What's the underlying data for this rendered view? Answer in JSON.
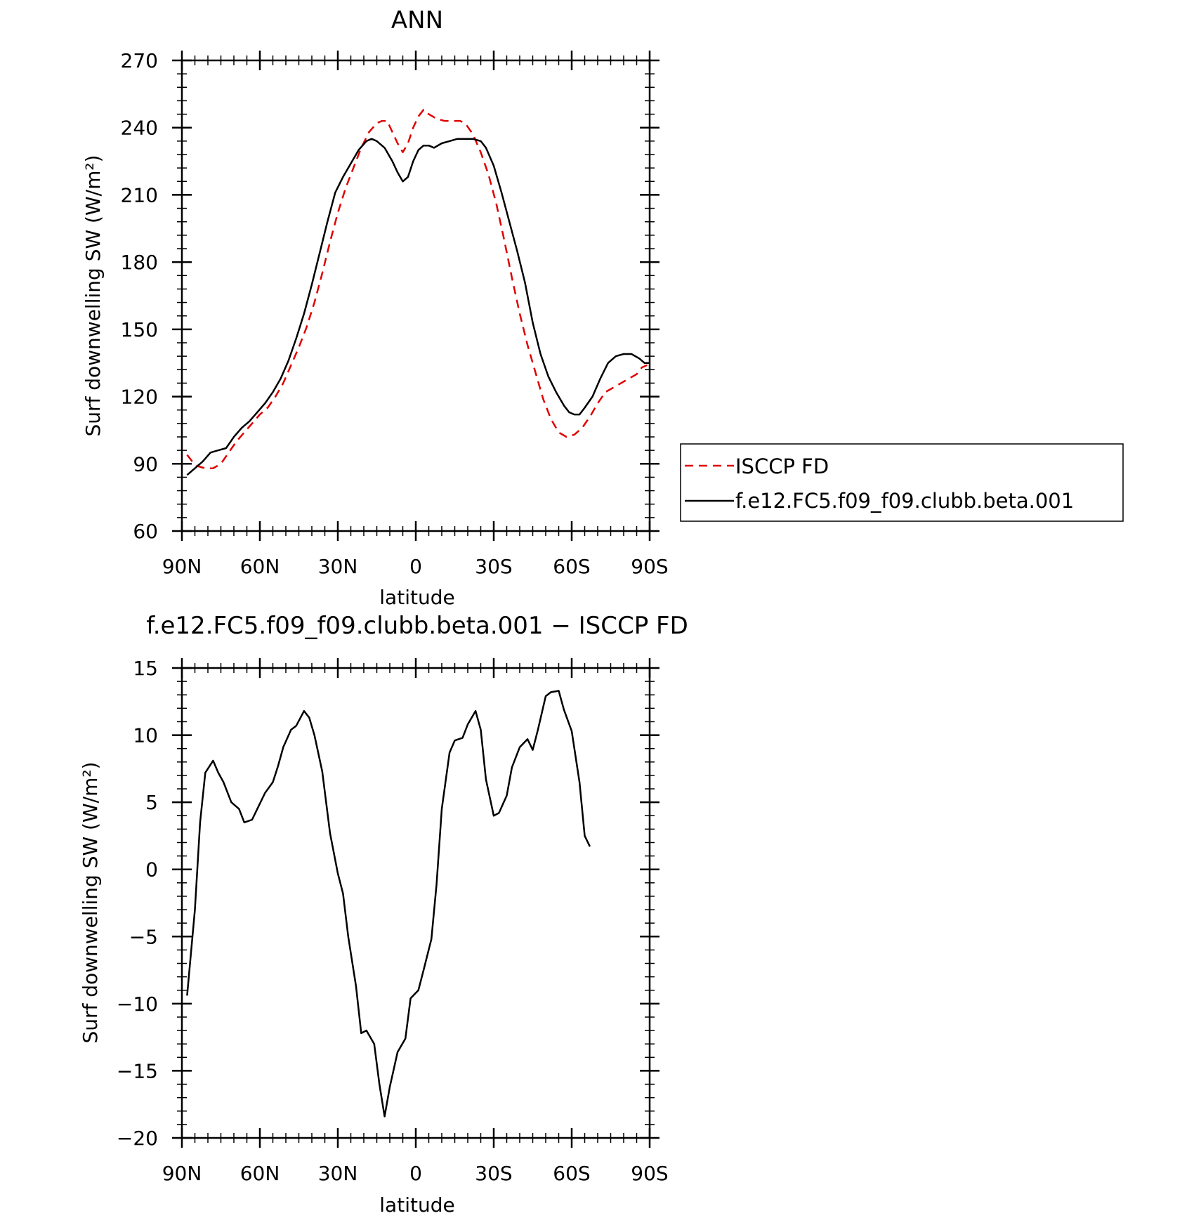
{
  "chart_data": [
    {
      "type": "line",
      "title": "ANN",
      "xlabel": "latitude",
      "ylabel": "Surf downwelling SW (W/m²)",
      "ylim": [
        60,
        270
      ],
      "yticks": [
        60,
        90,
        120,
        150,
        180,
        210,
        240,
        270
      ],
      "xlim": [
        90,
        -90
      ],
      "xticks": [
        90,
        60,
        30,
        0,
        -30,
        -60,
        -90
      ],
      "xtick_labels": [
        "90N",
        "60N",
        "30N",
        "0",
        "30S",
        "60S",
        "90S"
      ],
      "grid": false,
      "legend": {
        "placement": "outside-right",
        "entries": [
          "ISCCP FD",
          "f.e12.FC5.f09_f09.clubb.beta.001"
        ]
      },
      "series": [
        {
          "name": "ISCCP FD",
          "color": "#e00000",
          "style": "dashed",
          "points": [
            [
              88,
              94
            ],
            [
              86,
              91
            ],
            [
              84,
              89
            ],
            [
              81,
              88
            ],
            [
              78,
              88
            ],
            [
              75,
              90
            ],
            [
              72,
              95
            ],
            [
              69,
              100
            ],
            [
              66,
              104
            ],
            [
              63,
              108
            ],
            [
              60,
              112
            ],
            [
              57,
              115
            ],
            [
              54,
              120
            ],
            [
              51,
              126
            ],
            [
              48,
              134
            ],
            [
              45,
              142
            ],
            [
              42,
              151
            ],
            [
              39,
              162
            ],
            [
              36,
              175
            ],
            [
              33,
              189
            ],
            [
              30,
              202
            ],
            [
              27,
              213
            ],
            [
              24,
              222
            ],
            [
              21,
              231
            ],
            [
              18,
              238
            ],
            [
              15,
              242
            ],
            [
              13,
              243
            ],
            [
              11,
              243
            ],
            [
              9,
              238
            ],
            [
              7,
              233
            ],
            [
              5,
              229
            ],
            [
              3,
              233
            ],
            [
              1,
              240
            ],
            [
              -1,
              245
            ],
            [
              -3,
              248
            ],
            [
              -5,
              246
            ],
            [
              -8,
              244
            ],
            [
              -11,
              243
            ],
            [
              -14,
              243
            ],
            [
              -17,
              243
            ],
            [
              -19,
              242
            ],
            [
              -22,
              237
            ],
            [
              -25,
              229
            ],
            [
              -28,
              219
            ],
            [
              -31,
              206
            ],
            [
              -34,
              190
            ],
            [
              -37,
              173
            ],
            [
              -40,
              157
            ],
            [
              -43,
              143
            ],
            [
              -46,
              131
            ],
            [
              -49,
              119
            ],
            [
              -52,
              110
            ],
            [
              -55,
              104
            ],
            [
              -58,
              102
            ],
            [
              -61,
              103
            ],
            [
              -64,
              106
            ],
            [
              -67,
              111
            ],
            [
              -70,
              117
            ],
            [
              -73,
              122
            ],
            [
              -76,
              124
            ],
            [
              -79,
              126
            ],
            [
              -82,
              128
            ],
            [
              -85,
              130
            ],
            [
              -87,
              133
            ],
            [
              -89,
              134
            ]
          ]
        },
        {
          "name": "f.e12.FC5.f09_f09.clubb.beta.001",
          "color": "#000000",
          "style": "solid",
          "points": [
            [
              88,
              85
            ],
            [
              85,
              88
            ],
            [
              82,
              91
            ],
            [
              79,
              95
            ],
            [
              76,
              96
            ],
            [
              73,
              97
            ],
            [
              70,
              102
            ],
            [
              67,
              106
            ],
            [
              64,
              109
            ],
            [
              61,
              113
            ],
            [
              58,
              117
            ],
            [
              55,
              122
            ],
            [
              52,
              128
            ],
            [
              49,
              136
            ],
            [
              46,
              146
            ],
            [
              43,
              157
            ],
            [
              40,
              170
            ],
            [
              37,
              184
            ],
            [
              34,
              198
            ],
            [
              31,
              211
            ],
            [
              28,
              218
            ],
            [
              25,
              224
            ],
            [
              22,
              230
            ],
            [
              19,
              234
            ],
            [
              17,
              235
            ],
            [
              15,
              234
            ],
            [
              12,
              231
            ],
            [
              9,
              225
            ],
            [
              7,
              220
            ],
            [
              5,
              216
            ],
            [
              3,
              218
            ],
            [
              1,
              225
            ],
            [
              -1,
              230
            ],
            [
              -3,
              232
            ],
            [
              -5,
              232
            ],
            [
              -7,
              231
            ],
            [
              -10,
              233
            ],
            [
              -13,
              234
            ],
            [
              -16,
              235
            ],
            [
              -19,
              235
            ],
            [
              -22,
              235
            ],
            [
              -25,
              234
            ],
            [
              -27,
              231
            ],
            [
              -30,
              223
            ],
            [
              -33,
              211
            ],
            [
              -36,
              198
            ],
            [
              -39,
              185
            ],
            [
              -42,
              171
            ],
            [
              -45,
              153
            ],
            [
              -48,
              139
            ],
            [
              -51,
              129
            ],
            [
              -54,
              122
            ],
            [
              -57,
              116
            ],
            [
              -59,
              113
            ],
            [
              -61,
              112
            ],
            [
              -63,
              112
            ],
            [
              -65,
              115
            ],
            [
              -68,
              120
            ],
            [
              -71,
              128
            ],
            [
              -74,
              135
            ],
            [
              -77,
              138
            ],
            [
              -80,
              139
            ],
            [
              -83,
              139
            ],
            [
              -86,
              137
            ],
            [
              -88,
              135
            ],
            [
              -90,
              135
            ]
          ]
        }
      ]
    },
    {
      "type": "line",
      "title": "f.e12.FC5.f09_f09.clubb.beta.001 − ISCCP FD",
      "xlabel": "latitude",
      "ylabel": "Surf downwelling SW (W/m²)",
      "ylim": [
        -20,
        15
      ],
      "yticks": [
        -20,
        -15,
        -10,
        -5,
        0,
        5,
        10,
        15
      ],
      "ytick_labels": [
        "−20",
        "−15",
        "−10",
        "−5",
        "0",
        "5",
        "10",
        "15"
      ],
      "xlim": [
        90,
        -90
      ],
      "xticks": [
        90,
        60,
        30,
        0,
        -30,
        -60,
        -90
      ],
      "xtick_labels": [
        "90N",
        "60N",
        "30N",
        "0",
        "30S",
        "60S",
        "90S"
      ],
      "grid": false,
      "series": [
        {
          "color": "#000000",
          "style": "solid",
          "points": [
            [
              88,
              -9.4
            ],
            [
              85,
              -3
            ],
            [
              83,
              3.5
            ],
            [
              81,
              7.2
            ],
            [
              78,
              8.1
            ],
            [
              76,
              7.2
            ],
            [
              74,
              6.5
            ],
            [
              71,
              5
            ],
            [
              68,
              4.5
            ],
            [
              66,
              3.5
            ],
            [
              63,
              3.7
            ],
            [
              61,
              4.5
            ],
            [
              58,
              5.7
            ],
            [
              55,
              6.5
            ],
            [
              53,
              7.7
            ],
            [
              51,
              9.1
            ],
            [
              48,
              10.4
            ],
            [
              46,
              10.7
            ],
            [
              43,
              11.8
            ],
            [
              41,
              11.3
            ],
            [
              39,
              10
            ],
            [
              36,
              7.3
            ],
            [
              33,
              2.7
            ],
            [
              30,
              -0.3
            ],
            [
              28,
              -1.8
            ],
            [
              26,
              -5
            ],
            [
              23,
              -8.7
            ],
            [
              21,
              -12.2
            ],
            [
              19,
              -12.0
            ],
            [
              16,
              -13
            ],
            [
              14,
              -16
            ],
            [
              12,
              -18.4
            ],
            [
              10,
              -16.2
            ],
            [
              7,
              -13.6
            ],
            [
              4,
              -12.6
            ],
            [
              2,
              -9.6
            ],
            [
              -1,
              -9
            ],
            [
              -3,
              -7.5
            ],
            [
              -6,
              -5.2
            ],
            [
              -8,
              -1.1
            ],
            [
              -10,
              4.5
            ],
            [
              -13,
              8.7
            ],
            [
              -15,
              9.6
            ],
            [
              -18,
              9.8
            ],
            [
              -20,
              10.8
            ],
            [
              -23,
              11.8
            ],
            [
              -25,
              10.4
            ],
            [
              -27,
              6.7
            ],
            [
              -30,
              4.0
            ],
            [
              -32,
              4.2
            ],
            [
              -35,
              5.5
            ],
            [
              -37,
              7.6
            ],
            [
              -40,
              9.1
            ],
            [
              -43,
              9.7
            ],
            [
              -45,
              8.9
            ],
            [
              -47,
              10.4
            ],
            [
              -50,
              12.9
            ],
            [
              -52,
              13.2
            ],
            [
              -55,
              13.3
            ],
            [
              -57,
              11.9
            ],
            [
              -60,
              10.3
            ],
            [
              -63,
              6.5
            ],
            [
              -65,
              2.5
            ],
            [
              -67,
              1.7
            ]
          ]
        }
      ]
    }
  ]
}
